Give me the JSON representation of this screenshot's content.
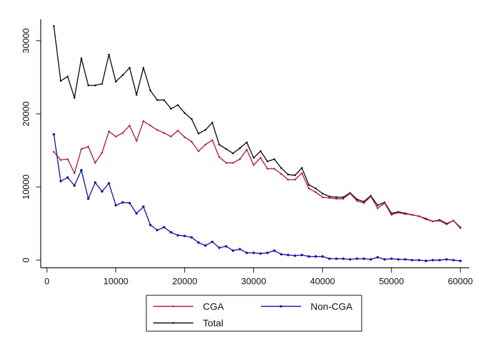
{
  "chart_data": {
    "type": "line",
    "title": "",
    "xlabel": "",
    "ylabel": "",
    "xlim": [
      0,
      60000
    ],
    "ylim": [
      0,
      33000
    ],
    "x_ticks": [
      0,
      10000,
      20000,
      30000,
      40000,
      50000,
      60000
    ],
    "y_ticks": [
      0,
      10000,
      20000,
      30000
    ],
    "x_tick_labels": [
      "0",
      "10000",
      "20000",
      "30000",
      "40000",
      "50000",
      "60000"
    ],
    "y_tick_labels": [
      "0",
      "10000",
      "20000",
      "30000"
    ],
    "grid": false,
    "legend_position": "bottom",
    "x": [
      1000,
      2000,
      3000,
      4000,
      5000,
      6000,
      7000,
      8000,
      9000,
      10000,
      11000,
      12000,
      13000,
      14000,
      15000,
      16000,
      17000,
      18000,
      19000,
      20000,
      21000,
      22000,
      23000,
      24000,
      25000,
      26000,
      27000,
      28000,
      29000,
      30000,
      31000,
      32000,
      33000,
      34000,
      35000,
      36000,
      37000,
      38000,
      39000,
      40000,
      41000,
      42000,
      43000,
      44000,
      45000,
      46000,
      47000,
      48000,
      49000,
      50000,
      51000,
      52000,
      53000,
      54000,
      55000,
      56000,
      57000,
      58000,
      59000,
      60000
    ],
    "series": [
      {
        "name": "CGA",
        "color": "#b0203a",
        "values": [
          14800,
          13700,
          13800,
          11900,
          15200,
          15500,
          13300,
          14700,
          17600,
          16900,
          17400,
          18400,
          16300,
          19000,
          18400,
          17800,
          17400,
          16900,
          17700,
          16800,
          16200,
          14900,
          15800,
          16400,
          14100,
          13300,
          13300,
          13800,
          15100,
          13000,
          14000,
          12500,
          12500,
          11800,
          11000,
          11000,
          11900,
          9800,
          9300,
          8600,
          8500,
          8400,
          8400,
          9100,
          8100,
          7800,
          8700,
          7100,
          7800,
          6200,
          6500,
          6300,
          6200,
          6000,
          5700,
          5300,
          5400,
          4900,
          5400,
          4500
        ]
      },
      {
        "name": "Non-CGA",
        "color": "#1a1aa8",
        "values": [
          17200,
          10800,
          11300,
          10200,
          12300,
          8400,
          10600,
          9400,
          10500,
          7500,
          7900,
          7800,
          6400,
          7300,
          4800,
          4100,
          4500,
          3800,
          3400,
          3300,
          3100,
          2400,
          2000,
          2500,
          1700,
          1900,
          1300,
          1500,
          1000,
          1000,
          900,
          1000,
          1300,
          800,
          700,
          600,
          700,
          500,
          500,
          500,
          200,
          200,
          200,
          100,
          200,
          200,
          100,
          400,
          100,
          200,
          100,
          100,
          0,
          0,
          -100,
          0,
          0,
          100,
          0,
          -100
        ]
      },
      {
        "name": "Total",
        "color": "#111111",
        "values": [
          32000,
          24500,
          25100,
          22200,
          27600,
          23900,
          23900,
          24100,
          28100,
          24400,
          25300,
          26300,
          22600,
          26300,
          23200,
          21900,
          21900,
          20700,
          21200,
          20100,
          19300,
          17300,
          17800,
          18800,
          15800,
          15200,
          14600,
          15300,
          16100,
          14000,
          14900,
          13500,
          13800,
          12600,
          11700,
          11600,
          12600,
          10300,
          9800,
          9100,
          8700,
          8600,
          8600,
          9200,
          8300,
          8000,
          8800,
          7500,
          7900,
          6400,
          6600,
          6400,
          6200,
          6000,
          5600,
          5300,
          5500,
          5000,
          5400,
          4400
        ]
      }
    ]
  }
}
